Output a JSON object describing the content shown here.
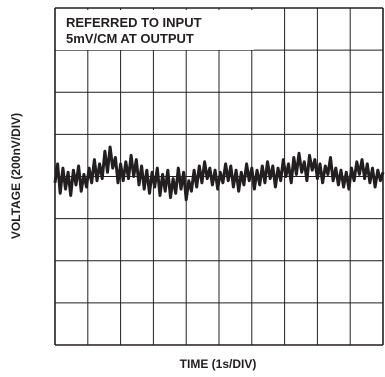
{
  "chart_data": {
    "type": "line",
    "title": "",
    "xlabel": "TIME (1s/DIV)",
    "ylabel": "VOLTAGE (200nV/DIV)",
    "annotations": [
      "REFERRED TO INPUT",
      "5mV/CM AT OUTPUT"
    ],
    "x_divisions": 10,
    "y_divisions": 8,
    "x_unit_per_div": "1s",
    "y_unit_per_div": "200nV",
    "xlim": [
      0,
      10
    ],
    "ylim": [
      -800,
      800
    ],
    "grid": true,
    "line_color": "#231f20",
    "series": [
      {
        "values": [
          [
            0.0,
            -30
          ],
          [
            0.08,
            60
          ],
          [
            0.16,
            -80
          ],
          [
            0.24,
            40
          ],
          [
            0.32,
            -60
          ],
          [
            0.4,
            20
          ],
          [
            0.48,
            -90
          ],
          [
            0.56,
            30
          ],
          [
            0.64,
            -40
          ],
          [
            0.72,
            50
          ],
          [
            0.8,
            -70
          ],
          [
            0.88,
            10
          ],
          [
            0.96,
            -50
          ],
          [
            1.04,
            40
          ],
          [
            1.12,
            -30
          ],
          [
            1.2,
            80
          ],
          [
            1.28,
            -20
          ],
          [
            1.36,
            60
          ],
          [
            1.44,
            -10
          ],
          [
            1.52,
            120
          ],
          [
            1.6,
            20
          ],
          [
            1.68,
            140
          ],
          [
            1.76,
            40
          ],
          [
            1.84,
            90
          ],
          [
            1.92,
            -30
          ],
          [
            2.0,
            60
          ],
          [
            2.08,
            -20
          ],
          [
            2.16,
            70
          ],
          [
            2.24,
            -10
          ],
          [
            2.32,
            100
          ],
          [
            2.4,
            0
          ],
          [
            2.48,
            80
          ],
          [
            2.56,
            -40
          ],
          [
            2.64,
            50
          ],
          [
            2.72,
            -60
          ],
          [
            2.8,
            30
          ],
          [
            2.88,
            -80
          ],
          [
            2.96,
            20
          ],
          [
            3.04,
            -50
          ],
          [
            3.12,
            40
          ],
          [
            3.2,
            -90
          ],
          [
            3.28,
            10
          ],
          [
            3.36,
            -70
          ],
          [
            3.44,
            30
          ],
          [
            3.52,
            -100
          ],
          [
            3.6,
            -10
          ],
          [
            3.68,
            -80
          ],
          [
            3.76,
            40
          ],
          [
            3.84,
            -60
          ],
          [
            3.92,
            20
          ],
          [
            4.0,
            -110
          ],
          [
            4.08,
            -20
          ],
          [
            4.16,
            -70
          ],
          [
            4.24,
            30
          ],
          [
            4.32,
            -50
          ],
          [
            4.4,
            50
          ],
          [
            4.48,
            -30
          ],
          [
            4.56,
            70
          ],
          [
            4.64,
            -10
          ],
          [
            4.72,
            40
          ],
          [
            4.8,
            -40
          ],
          [
            4.88,
            30
          ],
          [
            4.96,
            -60
          ],
          [
            5.04,
            20
          ],
          [
            5.12,
            -30
          ],
          [
            5.2,
            60
          ],
          [
            5.28,
            -20
          ],
          [
            5.36,
            50
          ],
          [
            5.44,
            -50
          ],
          [
            5.52,
            30
          ],
          [
            5.6,
            -70
          ],
          [
            5.68,
            20
          ],
          [
            5.76,
            -40
          ],
          [
            5.84,
            60
          ],
          [
            5.92,
            -20
          ],
          [
            6.0,
            40
          ],
          [
            6.08,
            -60
          ],
          [
            6.16,
            30
          ],
          [
            6.24,
            -40
          ],
          [
            6.32,
            50
          ],
          [
            6.4,
            -30
          ],
          [
            6.48,
            70
          ],
          [
            6.56,
            -10
          ],
          [
            6.64,
            50
          ],
          [
            6.72,
            -50
          ],
          [
            6.8,
            40
          ],
          [
            6.88,
            -20
          ],
          [
            6.96,
            80
          ],
          [
            7.04,
            0
          ],
          [
            7.12,
            60
          ],
          [
            7.2,
            -30
          ],
          [
            7.28,
            90
          ],
          [
            7.36,
            10
          ],
          [
            7.44,
            110
          ],
          [
            7.52,
            20
          ],
          [
            7.6,
            70
          ],
          [
            7.68,
            -20
          ],
          [
            7.76,
            100
          ],
          [
            7.84,
            30
          ],
          [
            7.92,
            80
          ],
          [
            8.0,
            -10
          ],
          [
            8.08,
            60
          ],
          [
            8.16,
            -30
          ],
          [
            8.24,
            50
          ],
          [
            8.32,
            10
          ],
          [
            8.4,
            90
          ],
          [
            8.48,
            -20
          ],
          [
            8.56,
            40
          ],
          [
            8.64,
            -40
          ],
          [
            8.72,
            30
          ],
          [
            8.8,
            -50
          ],
          [
            8.88,
            20
          ],
          [
            8.96,
            -60
          ],
          [
            9.04,
            40
          ],
          [
            9.12,
            -20
          ],
          [
            9.2,
            70
          ],
          [
            9.28,
            10
          ],
          [
            9.36,
            80
          ],
          [
            9.44,
            -10
          ],
          [
            9.52,
            60
          ],
          [
            9.6,
            -30
          ],
          [
            9.68,
            40
          ],
          [
            9.76,
            -50
          ],
          [
            9.84,
            30
          ],
          [
            9.92,
            -20
          ],
          [
            10.0,
            20
          ]
        ]
      }
    ]
  }
}
